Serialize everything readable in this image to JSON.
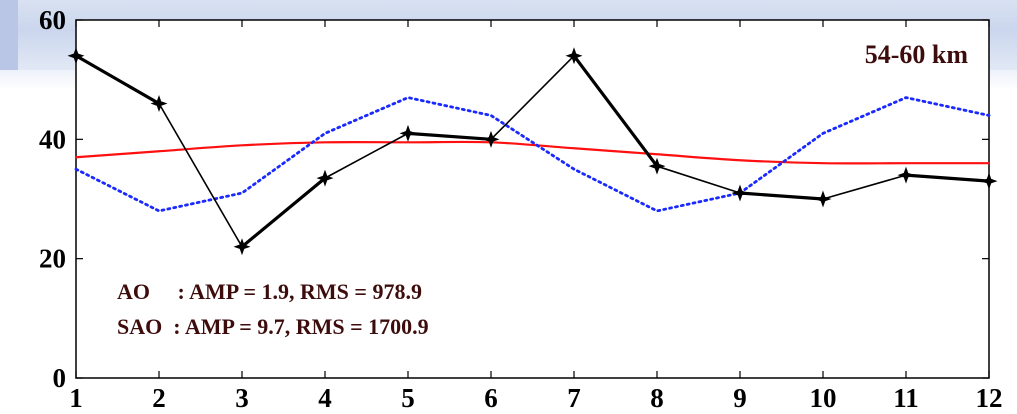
{
  "chart_data": {
    "type": "line",
    "x": [
      1,
      2,
      3,
      4,
      5,
      6,
      7,
      8,
      9,
      10,
      11,
      12
    ],
    "xlim": [
      1,
      12
    ],
    "ylim": [
      0,
      60
    ],
    "xticks": [
      "1",
      "2",
      "3",
      "4",
      "5",
      "6",
      "7",
      "8",
      "9",
      "10",
      "11",
      "12"
    ],
    "yticks": [
      "0",
      "20",
      "40",
      "60"
    ],
    "grid": false,
    "series": [
      {
        "values": [
          54,
          46,
          22,
          33.5,
          41,
          40,
          54,
          35.5,
          31,
          30,
          34,
          33
        ],
        "color": "#000000",
        "style": "solid",
        "marker": "star"
      },
      {
        "values": [
          35,
          28,
          31,
          41,
          47,
          44,
          35,
          28,
          31,
          41,
          47,
          44
        ],
        "color": "#1a2aff",
        "style": "dotted",
        "marker": "none"
      },
      {
        "values": [
          37,
          38,
          39,
          39.5,
          39.5,
          39.5,
          38.5,
          37.5,
          36.5,
          36,
          36,
          36
        ],
        "color": "#ff1010",
        "style": "solid",
        "marker": "none"
      }
    ],
    "annotations": {
      "region": "54-60 km",
      "ao_line": "AO     : AMP = 1.9, RMS = 978.9",
      "sao_line": "SAO  : AMP = 9.7, RMS = 1700.9"
    }
  }
}
